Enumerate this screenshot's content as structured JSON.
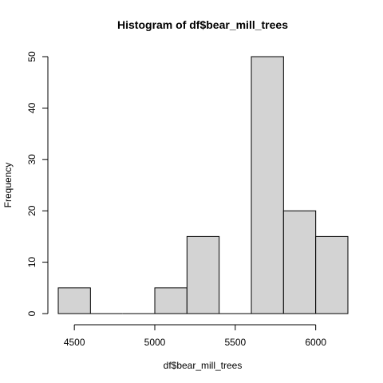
{
  "chart_data": {
    "type": "bar",
    "title": "Histogram of df$bear_mill_trees",
    "xlabel": "df$bear_mill_trees",
    "ylabel": "Frequency",
    "bins": [
      {
        "start": 4400,
        "end": 4600,
        "count": 5
      },
      {
        "start": 4600,
        "end": 4800,
        "count": 0
      },
      {
        "start": 4800,
        "end": 5000,
        "count": 0
      },
      {
        "start": 5000,
        "end": 5200,
        "count": 5
      },
      {
        "start": 5200,
        "end": 5400,
        "count": 15
      },
      {
        "start": 5400,
        "end": 5600,
        "count": 0
      },
      {
        "start": 5600,
        "end": 5800,
        "count": 50
      },
      {
        "start": 5800,
        "end": 6000,
        "count": 20
      },
      {
        "start": 6000,
        "end": 6200,
        "count": 15
      }
    ],
    "xlim": [
      4400,
      6200
    ],
    "ylim": [
      0,
      50
    ],
    "x_ticks": [
      "4500",
      "5000",
      "5500",
      "6000"
    ],
    "y_ticks": [
      "0",
      "10",
      "20",
      "30",
      "40",
      "50"
    ],
    "bar_fill": "#d3d3d3",
    "bar_stroke": "#000000",
    "grid": false,
    "legend": "none"
  }
}
